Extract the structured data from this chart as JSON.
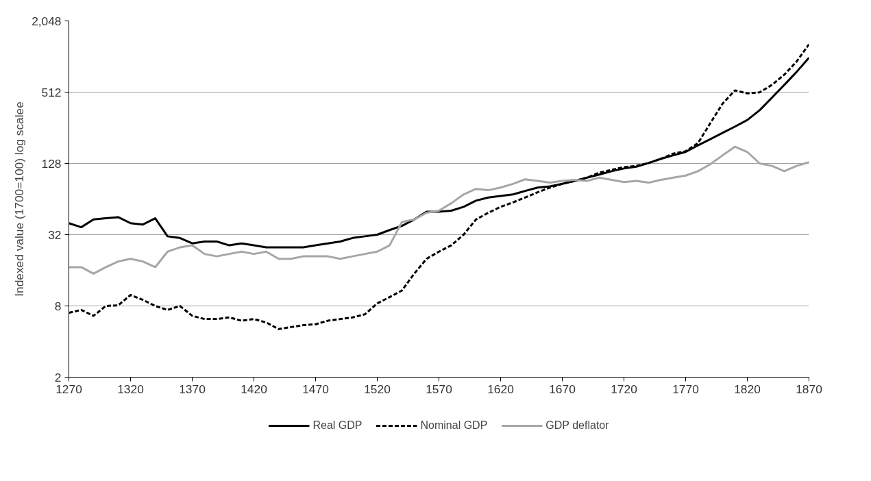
{
  "chart_data": {
    "type": "line",
    "ylabel": "Indexed value (1700=100) log scalee",
    "log": "y",
    "grid": "y",
    "legend": "bottom",
    "x": [
      1270,
      1280,
      1290,
      1300,
      1310,
      1320,
      1330,
      1340,
      1350,
      1360,
      1370,
      1380,
      1390,
      1400,
      1410,
      1420,
      1430,
      1440,
      1450,
      1460,
      1470,
      1480,
      1490,
      1500,
      1510,
      1520,
      1530,
      1540,
      1550,
      1560,
      1570,
      1580,
      1590,
      1600,
      1610,
      1620,
      1630,
      1640,
      1650,
      1660,
      1670,
      1680,
      1690,
      1700,
      1710,
      1720,
      1730,
      1740,
      1750,
      1760,
      1770,
      1780,
      1790,
      1800,
      1810,
      1820,
      1830,
      1840,
      1850,
      1860,
      1870
    ],
    "xlim": [
      1270,
      1870
    ],
    "xticks": [
      1270,
      1320,
      1370,
      1420,
      1470,
      1520,
      1570,
      1620,
      1670,
      1720,
      1770,
      1820,
      1870
    ],
    "ylim": [
      2,
      2048
    ],
    "yticks": [
      2,
      8,
      32,
      128,
      512,
      {
        "value": 2048,
        "label": "2,048"
      }
    ],
    "series": [
      {
        "name": "Real GDP",
        "color": "#000000",
        "line_style": "solid",
        "values": [
          40,
          37,
          43,
          44,
          45,
          40,
          39,
          44,
          31,
          30,
          27,
          28,
          28,
          26,
          27,
          26,
          25,
          25,
          25,
          25,
          26,
          27,
          28,
          30,
          31,
          32,
          35,
          38,
          43,
          50,
          50,
          51,
          55,
          62,
          66,
          68,
          70,
          75,
          80,
          82,
          86,
          91,
          97,
          103,
          110,
          116,
          120,
          129,
          140,
          150,
          160,
          182,
          205,
          232,
          262,
          298,
          360,
          460,
          590,
          760,
          1000
        ]
      },
      {
        "name": "Nominal GDP",
        "color": "#000000",
        "line_style": "dashed",
        "values": [
          7,
          7.4,
          6.6,
          8,
          8.1,
          9.9,
          9,
          8,
          7.4,
          8,
          6.6,
          6.2,
          6.2,
          6.4,
          6,
          6.2,
          5.8,
          5.1,
          5.3,
          5.5,
          5.6,
          6,
          6.2,
          6.4,
          6.8,
          8.4,
          9.5,
          10.8,
          15,
          20,
          23,
          26,
          32,
          43,
          49,
          55,
          60,
          66,
          73,
          80,
          86,
          91,
          97,
          107,
          113,
          119,
          122,
          129,
          140,
          155,
          162,
          190,
          280,
          410,
          530,
          500,
          510,
          590,
          720,
          930,
          1300
        ]
      },
      {
        "name": "GDP deflator",
        "color": "#a6a6a6",
        "line_style": "solid",
        "values": [
          17,
          17,
          15,
          17,
          19,
          20,
          19,
          17,
          23,
          25,
          26,
          22,
          21,
          22,
          23,
          22,
          23,
          20,
          20,
          21,
          21,
          21,
          20,
          21,
          22,
          23,
          26,
          41,
          43,
          49,
          51,
          59,
          70,
          78,
          76,
          80,
          86,
          94,
          91,
          88,
          91,
          93,
          91,
          97,
          93,
          89,
          91,
          88,
          93,
          97,
          101,
          110,
          126,
          150,
          177,
          160,
          128,
          122,
          110,
          122,
          131
        ]
      }
    ]
  }
}
